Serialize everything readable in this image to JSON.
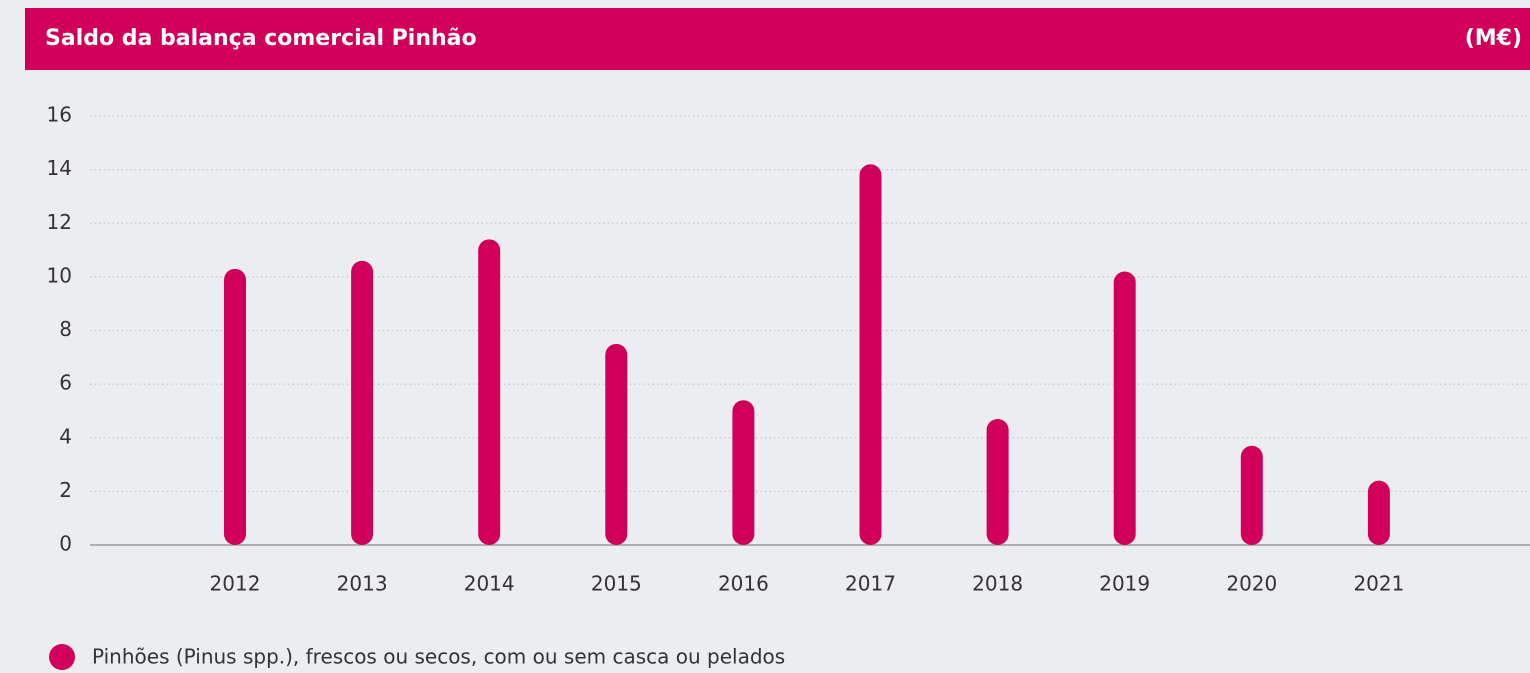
{
  "chart_data": {
    "type": "bar",
    "title": "Saldo da balança comercial Pinhão",
    "unit_label": "(M€)",
    "categories": [
      "2012",
      "2013",
      "2014",
      "2015",
      "2016",
      "2017",
      "2018",
      "2019",
      "2020",
      "2021"
    ],
    "series": [
      {
        "name": "Pinhões (Pinus spp.), frescos ou secos, com ou sem casca ou pelados",
        "color": "#d0005a",
        "values": [
          10.3,
          10.6,
          11.4,
          7.5,
          5.4,
          14.2,
          4.7,
          10.2,
          3.7,
          2.4
        ]
      }
    ],
    "ylim": [
      0,
      16
    ],
    "yticks": [
      0,
      2,
      4,
      6,
      8,
      10,
      12,
      14,
      16
    ],
    "grid": true,
    "legend": "bottom-left"
  }
}
